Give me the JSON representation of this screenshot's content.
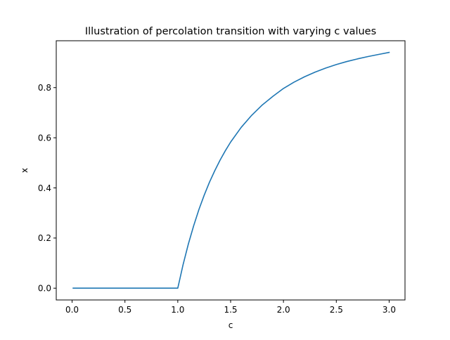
{
  "chart_data": {
    "type": "line",
    "title": "Illustration of percolation transition with varying c values",
    "xlabel": "c",
    "ylabel": "x",
    "xlim": [
      -0.15,
      3.15
    ],
    "ylim": [
      -0.047,
      0.987
    ],
    "x_ticks": [
      {
        "value": 0.0,
        "label": "0.0"
      },
      {
        "value": 0.5,
        "label": "0.5"
      },
      {
        "value": 1.0,
        "label": "1.0"
      },
      {
        "value": 1.5,
        "label": "1.5"
      },
      {
        "value": 2.0,
        "label": "2.0"
      },
      {
        "value": 2.5,
        "label": "2.5"
      },
      {
        "value": 3.0,
        "label": "3.0"
      }
    ],
    "y_ticks": [
      {
        "value": 0.0,
        "label": "0.0"
      },
      {
        "value": 0.2,
        "label": "0.2"
      },
      {
        "value": 0.4,
        "label": "0.4"
      },
      {
        "value": 0.6,
        "label": "0.6"
      },
      {
        "value": 0.8,
        "label": "0.8"
      }
    ],
    "grid": false,
    "legend": "none",
    "series": [
      {
        "color": "#1f77b4",
        "x": [
          0.01,
          0.5,
          1.0,
          1.05,
          1.1,
          1.15,
          1.2,
          1.25,
          1.3,
          1.35,
          1.4,
          1.45,
          1.5,
          1.6,
          1.7,
          1.8,
          1.9,
          2.0,
          2.1,
          2.2,
          2.3,
          2.4,
          2.5,
          2.6,
          2.7,
          2.8,
          2.9,
          3.0
        ],
        "y": [
          0.0,
          0.0,
          0.0,
          0.0937,
          0.1761,
          0.2487,
          0.3137,
          0.371,
          0.4228,
          0.4686,
          0.5107,
          0.5483,
          0.5828,
          0.6414,
          0.6899,
          0.731,
          0.7652,
          0.7968,
          0.8218,
          0.8434,
          0.862,
          0.8781,
          0.8921,
          0.9042,
          0.9146,
          0.9239,
          0.9323,
          0.9405
        ]
      }
    ]
  }
}
